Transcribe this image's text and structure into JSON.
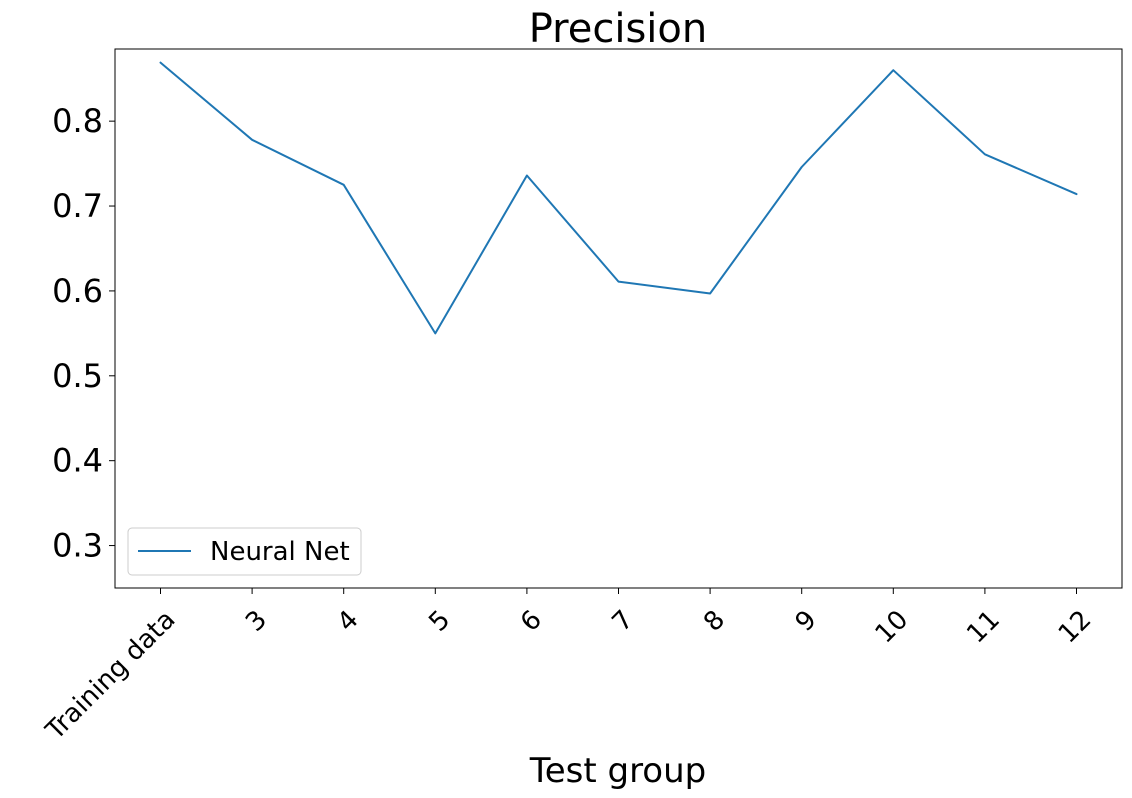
{
  "chart_data": {
    "type": "line",
    "title": "Precision",
    "xlabel": "Test group",
    "ylabel": "",
    "categories": [
      "Training data",
      "3",
      "4",
      "5",
      "6",
      "7",
      "8",
      "9",
      "10",
      "11",
      "12"
    ],
    "series": [
      {
        "name": "Neural Net",
        "color": "#1f77b4",
        "values": [
          0.869,
          0.778,
          0.725,
          0.55,
          0.736,
          0.611,
          0.597,
          0.746,
          0.86,
          0.761,
          0.714
        ]
      }
    ],
    "ylim": [
      0.25,
      0.885
    ],
    "yticks": [
      0.3,
      0.4,
      0.5,
      0.6,
      0.7,
      0.8
    ],
    "ytick_labels": [
      "0.3",
      "0.4",
      "0.5",
      "0.6",
      "0.7",
      "0.8"
    ],
    "grid": false,
    "legend_position": "lower-left"
  }
}
